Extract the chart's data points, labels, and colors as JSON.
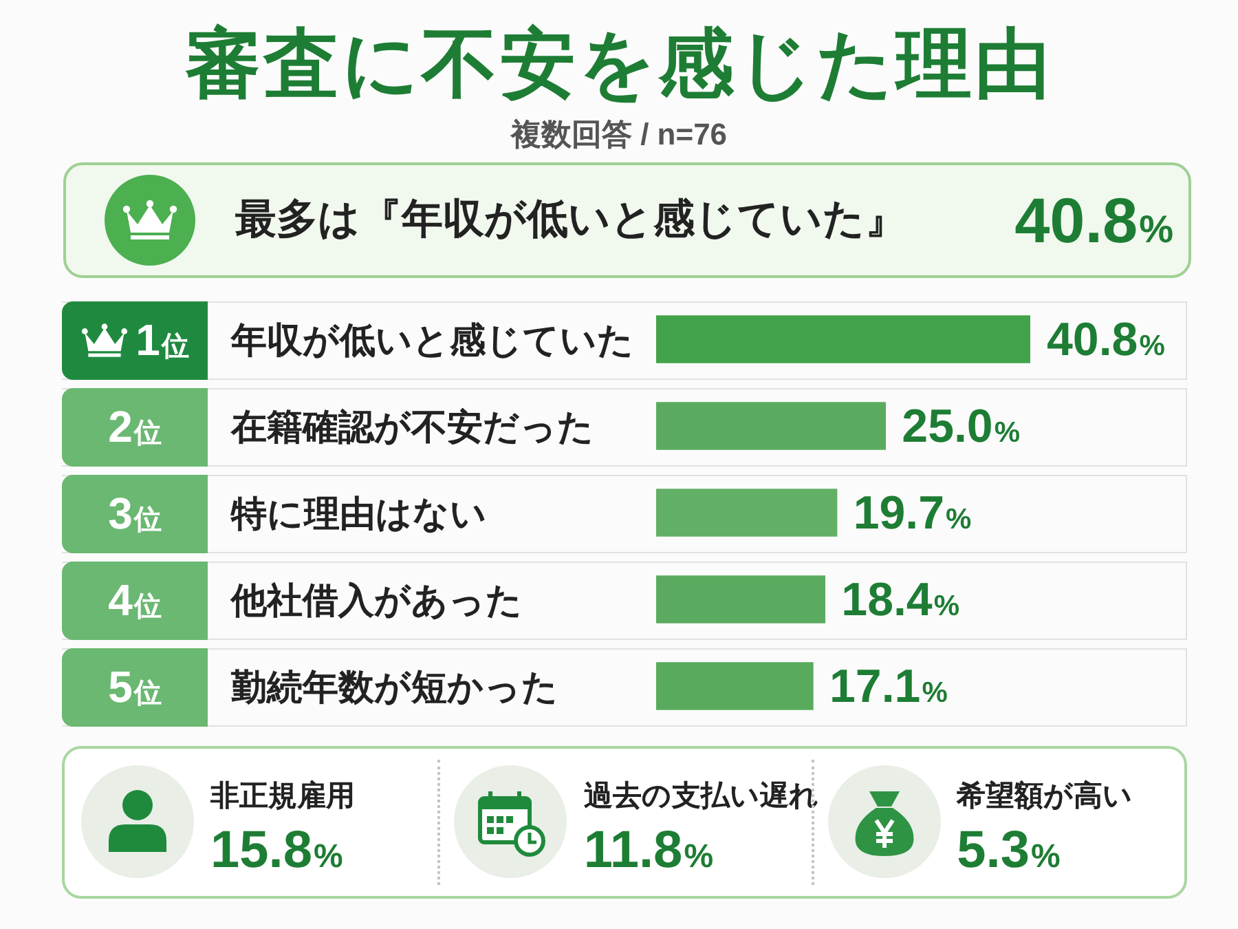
{
  "chart_data": [
    {
      "type": "bar",
      "orientation": "horizontal",
      "title": "審査に不安を感じた理由",
      "subtitle": "複数回答 / n=76",
      "categories": [
        "年収が低いと感じていた",
        "在籍確認が不安だった",
        "特に理由はない",
        "他社借入があった",
        "勤続年数が短かった"
      ],
      "values": [
        40.8,
        25.0,
        19.7,
        18.4,
        17.1
      ],
      "colors": [
        "#43a34b",
        "#5aab5f",
        "#62af66",
        "#5aab5f",
        "#58aa5d"
      ],
      "value_labels": [
        "40.8%",
        "25.0%",
        "19.7%",
        "18.4%",
        "17.1%"
      ],
      "annotations": [
        "最多は『年収が低いと感じていた』",
        "40.8%",
        "1位",
        "2位",
        "3位",
        "4位",
        "5位"
      ]
    },
    {
      "type": "other",
      "categories": [
        "非正規雇用",
        "過去の支払い遅れ",
        "希望額が高い"
      ],
      "values": [
        15.8,
        11.8,
        5.3
      ],
      "value_labels": [
        "15.8%",
        "11.8%",
        "5.3%"
      ]
    }
  ]
}
